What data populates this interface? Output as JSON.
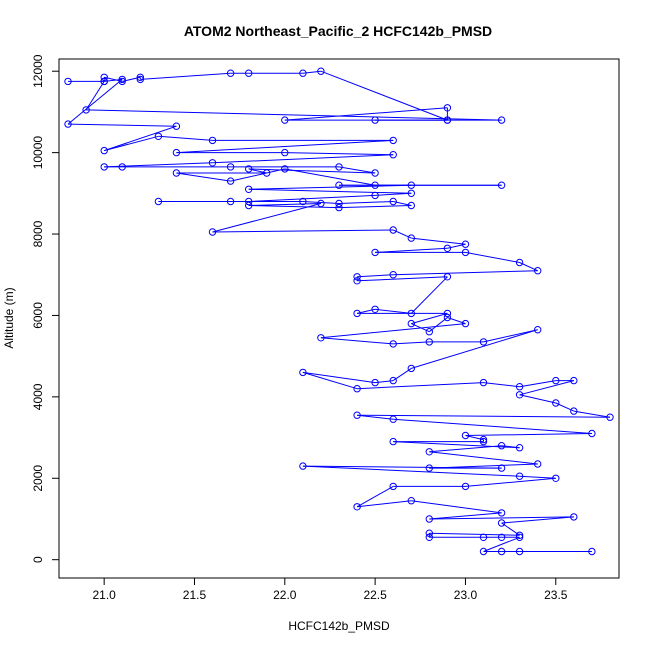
{
  "chart_data": {
    "type": "line",
    "title": "ATOM2 Northeast_Pacific_2 HCFC142b_PMSD",
    "xlabel": "HCFC142b_PMSD",
    "ylabel": "Altitude (m)",
    "xlim": [
      20.75,
      23.85
    ],
    "ylim": [
      -450,
      12300
    ],
    "xticks": [
      21.0,
      21.5,
      22.0,
      22.5,
      23.0,
      23.5
    ],
    "xtick_labels": [
      "21.0",
      "21.5",
      "22.0",
      "22.5",
      "23.0",
      "23.5"
    ],
    "yticks": [
      0,
      2000,
      4000,
      6000,
      8000,
      10000,
      12000
    ],
    "ytick_labels": [
      "0",
      "2000",
      "4000",
      "6000",
      "8000",
      "10000",
      "12000"
    ],
    "grid": false,
    "legend": "none",
    "colors": {
      "series": "#0000ff",
      "axis": "#000000"
    },
    "series": [
      {
        "marker": "open-circle",
        "points": [
          [
            20.8,
            11750
          ],
          [
            21.0,
            11750
          ],
          [
            21.0,
            11850
          ],
          [
            21.1,
            11750
          ],
          [
            21.2,
            11850
          ],
          [
            21.2,
            11800
          ],
          [
            21.7,
            11950
          ],
          [
            21.8,
            11950
          ],
          [
            22.1,
            11950
          ],
          [
            22.2,
            12000
          ],
          [
            22.9,
            10800
          ],
          [
            22.0,
            10800
          ],
          [
            22.9,
            11100
          ],
          [
            22.9,
            10800
          ],
          [
            22.5,
            10800
          ],
          [
            23.2,
            10800
          ],
          [
            20.9,
            11050
          ],
          [
            21.0,
            11750
          ],
          [
            21.1,
            11800
          ],
          [
            20.8,
            10700
          ],
          [
            21.4,
            10650
          ],
          [
            21.0,
            10050
          ],
          [
            21.3,
            10400
          ],
          [
            21.6,
            10300
          ],
          [
            22.6,
            10300
          ],
          [
            21.4,
            10000
          ],
          [
            22.0,
            10000
          ],
          [
            22.6,
            9950
          ],
          [
            21.6,
            9750
          ],
          [
            21.0,
            9650
          ],
          [
            21.1,
            9650
          ],
          [
            21.7,
            9650
          ],
          [
            22.3,
            9650
          ],
          [
            22.5,
            9500
          ],
          [
            21.8,
            9600
          ],
          [
            21.9,
            9500
          ],
          [
            21.4,
            9500
          ],
          [
            21.7,
            9300
          ],
          [
            22.0,
            9600
          ],
          [
            22.5,
            9200
          ],
          [
            23.2,
            9200
          ],
          [
            22.3,
            9200
          ],
          [
            22.7,
            9200
          ],
          [
            21.8,
            9100
          ],
          [
            22.7,
            9000
          ],
          [
            22.5,
            8950
          ],
          [
            21.8,
            8800
          ],
          [
            21.3,
            8800
          ],
          [
            21.7,
            8800
          ],
          [
            22.1,
            8800
          ],
          [
            22.3,
            8750
          ],
          [
            22.6,
            8800
          ],
          [
            22.7,
            8700
          ],
          [
            22.3,
            8650
          ],
          [
            21.8,
            8700
          ],
          [
            22.2,
            8750
          ],
          [
            21.6,
            8050
          ],
          [
            22.6,
            8100
          ],
          [
            22.7,
            7900
          ],
          [
            23.0,
            7750
          ],
          [
            22.9,
            7650
          ],
          [
            22.5,
            7550
          ],
          [
            23.0,
            7550
          ],
          [
            23.3,
            7300
          ],
          [
            23.4,
            7100
          ],
          [
            22.6,
            7000
          ],
          [
            22.4,
            6950
          ],
          [
            22.4,
            6850
          ],
          [
            22.9,
            6950
          ],
          [
            22.7,
            6050
          ],
          [
            22.5,
            6150
          ],
          [
            22.4,
            6050
          ],
          [
            22.9,
            6050
          ],
          [
            22.7,
            5800
          ],
          [
            22.8,
            5600
          ],
          [
            22.9,
            5950
          ],
          [
            23.0,
            5800
          ],
          [
            22.2,
            5450
          ],
          [
            22.6,
            5300
          ],
          [
            22.8,
            5350
          ],
          [
            23.1,
            5350
          ],
          [
            23.4,
            5650
          ],
          [
            22.7,
            4700
          ],
          [
            22.6,
            4400
          ],
          [
            22.5,
            4350
          ],
          [
            22.1,
            4600
          ],
          [
            22.4,
            4200
          ],
          [
            23.1,
            4350
          ],
          [
            23.3,
            4250
          ],
          [
            23.5,
            4400
          ],
          [
            23.6,
            4400
          ],
          [
            23.3,
            4050
          ],
          [
            23.5,
            3850
          ],
          [
            23.6,
            3650
          ],
          [
            23.8,
            3500
          ],
          [
            22.4,
            3550
          ],
          [
            22.6,
            3450
          ],
          [
            23.7,
            3100
          ],
          [
            23.0,
            3050
          ],
          [
            23.1,
            2950
          ],
          [
            23.1,
            2900
          ],
          [
            22.6,
            2900
          ],
          [
            23.3,
            2750
          ],
          [
            23.2,
            2800
          ],
          [
            22.8,
            2650
          ],
          [
            23.4,
            2350
          ],
          [
            22.8,
            2250
          ],
          [
            23.2,
            2250
          ],
          [
            22.1,
            2300
          ],
          [
            23.3,
            2050
          ],
          [
            23.5,
            2000
          ],
          [
            23.0,
            1800
          ],
          [
            22.6,
            1800
          ],
          [
            22.4,
            1300
          ],
          [
            22.7,
            1450
          ],
          [
            23.2,
            1150
          ],
          [
            22.8,
            1000
          ],
          [
            23.6,
            1050
          ],
          [
            23.2,
            900
          ],
          [
            23.3,
            600
          ],
          [
            22.8,
            650
          ],
          [
            22.8,
            550
          ],
          [
            23.1,
            550
          ],
          [
            23.2,
            550
          ],
          [
            23.3,
            550
          ],
          [
            23.1,
            200
          ],
          [
            23.2,
            200
          ],
          [
            23.3,
            200
          ],
          [
            23.7,
            200
          ]
        ]
      }
    ]
  }
}
